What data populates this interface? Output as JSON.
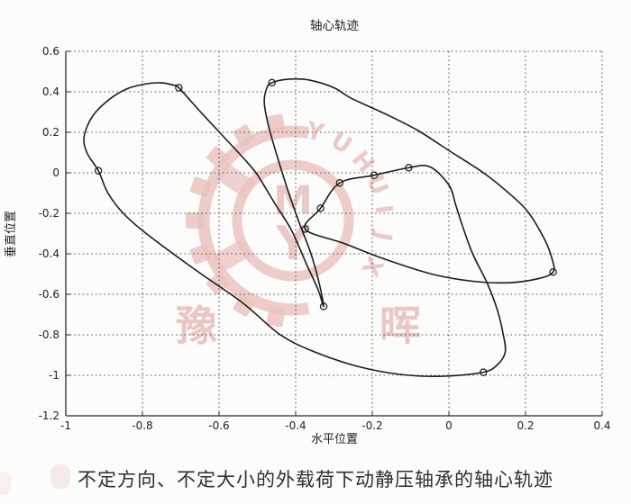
{
  "page": {
    "background": "#fcfcfb"
  },
  "figure": {
    "title": "轴心轨迹",
    "xlabel": "水平位置",
    "ylabel": "垂直位置"
  },
  "caption": "不定方向、不定大小的外载荷下动静压轴承的轴心轨迹",
  "watermark": {
    "ring_letters": [
      "Y",
      "U",
      "H",
      "U",
      "I",
      "J",
      "X"
    ],
    "monogram_top": "M",
    "monogram_bottom": "Y",
    "char_left": "豫",
    "char_right": "晖",
    "color": "#cf6a63"
  },
  "chart_data": {
    "type": "line",
    "title": "轴心轨迹",
    "xlabel": "水平位置",
    "ylabel": "垂直位置",
    "xlim": [
      -1,
      0.4
    ],
    "ylim": [
      -1.2,
      0.6
    ],
    "grid": true,
    "line_color": "#1c1c1c",
    "marker_style": "o",
    "closed": true,
    "xticks": [
      {
        "v": -1,
        "label": "-1"
      },
      {
        "v": -0.8,
        "label": "-0.8"
      },
      {
        "v": -0.6,
        "label": "-0.6"
      },
      {
        "v": -0.4,
        "label": "-0.4"
      },
      {
        "v": -0.2,
        "label": "-0.2"
      },
      {
        "v": 0,
        "label": "0"
      },
      {
        "v": 0.2,
        "label": "0.2"
      },
      {
        "v": 0.4,
        "label": "0.4"
      }
    ],
    "yticks": [
      {
        "v": 0.6,
        "label": "0.6"
      },
      {
        "v": 0.4,
        "label": "0.4"
      },
      {
        "v": 0.2,
        "label": "0.2"
      },
      {
        "v": 0,
        "label": "0"
      },
      {
        "v": -0.2,
        "label": "-0.2"
      },
      {
        "v": -0.4,
        "label": "-0.4"
      },
      {
        "v": -0.6,
        "label": "-0.6"
      },
      {
        "v": -0.8,
        "label": "-0.8"
      },
      {
        "v": -1,
        "label": "-1"
      },
      {
        "v": -1.2,
        "label": "-1.2"
      }
    ],
    "trajectory": [
      [
        -0.915,
        0.01
      ],
      [
        -0.945,
        0.1
      ],
      [
        -0.952,
        0.18
      ],
      [
        -0.93,
        0.28
      ],
      [
        -0.888,
        0.36
      ],
      [
        -0.84,
        0.415
      ],
      [
        -0.788,
        0.44
      ],
      [
        -0.75,
        0.444
      ],
      [
        -0.72,
        0.433
      ],
      [
        -0.705,
        0.42
      ],
      [
        -0.648,
        0.3
      ],
      [
        -0.589,
        0.18
      ],
      [
        -0.535,
        0.07
      ],
      [
        -0.5,
        -0.01
      ],
      [
        -0.455,
        -0.15
      ],
      [
        -0.412,
        -0.28
      ],
      [
        -0.372,
        -0.45
      ],
      [
        -0.342,
        -0.575
      ],
      [
        -0.327,
        -0.66
      ],
      [
        -0.338,
        -0.55
      ],
      [
        -0.36,
        -0.4
      ],
      [
        -0.388,
        -0.26
      ],
      [
        -0.418,
        -0.1
      ],
      [
        -0.448,
        0.08
      ],
      [
        -0.472,
        0.24
      ],
      [
        -0.482,
        0.35
      ],
      [
        -0.475,
        0.42
      ],
      [
        -0.462,
        0.445
      ],
      [
        -0.42,
        0.462
      ],
      [
        -0.365,
        0.458
      ],
      [
        -0.3,
        0.42
      ],
      [
        -0.255,
        0.368
      ],
      [
        -0.165,
        0.29
      ],
      [
        -0.082,
        0.21
      ],
      [
        0.0,
        0.11
      ],
      [
        0.09,
        0.0
      ],
      [
        0.15,
        -0.09
      ],
      [
        0.205,
        -0.19
      ],
      [
        0.25,
        -0.33
      ],
      [
        0.27,
        -0.43
      ],
      [
        0.272,
        -0.49
      ],
      [
        0.235,
        -0.522
      ],
      [
        0.155,
        -0.543
      ],
      [
        0.06,
        -0.535
      ],
      [
        -0.045,
        -0.5
      ],
      [
        -0.165,
        -0.428
      ],
      [
        -0.275,
        -0.348
      ],
      [
        -0.375,
        -0.278
      ],
      [
        -0.335,
        -0.175
      ],
      [
        -0.285,
        -0.05
      ],
      [
        -0.195,
        -0.012
      ],
      [
        -0.105,
        0.025
      ],
      [
        -0.05,
        0.03
      ],
      [
        0.0,
        -0.06
      ],
      [
        0.018,
        -0.16
      ],
      [
        0.035,
        -0.26
      ],
      [
        0.062,
        -0.4
      ],
      [
        0.1,
        -0.545
      ],
      [
        0.126,
        -0.675
      ],
      [
        0.142,
        -0.8
      ],
      [
        0.147,
        -0.885
      ],
      [
        0.128,
        -0.945
      ],
      [
        0.09,
        -0.985
      ],
      [
        -0.02,
        -1.005
      ],
      [
        -0.13,
        -0.995
      ],
      [
        -0.24,
        -0.955
      ],
      [
        -0.35,
        -0.885
      ],
      [
        -0.44,
        -0.8
      ],
      [
        -0.54,
        -0.64
      ],
      [
        -0.665,
        -0.475
      ],
      [
        -0.79,
        -0.3
      ],
      [
        -0.85,
        -0.2
      ],
      [
        -0.89,
        -0.1
      ]
    ],
    "marker_points": [
      [
        -0.915,
        0.01
      ],
      [
        -0.705,
        0.42
      ],
      [
        -0.327,
        -0.66
      ],
      [
        -0.462,
        0.445
      ],
      [
        0.272,
        -0.49
      ],
      [
        -0.375,
        -0.278
      ],
      [
        -0.335,
        -0.175
      ],
      [
        -0.285,
        -0.05
      ],
      [
        -0.195,
        -0.012
      ],
      [
        -0.105,
        0.025
      ],
      [
        0.09,
        -0.985
      ]
    ]
  }
}
